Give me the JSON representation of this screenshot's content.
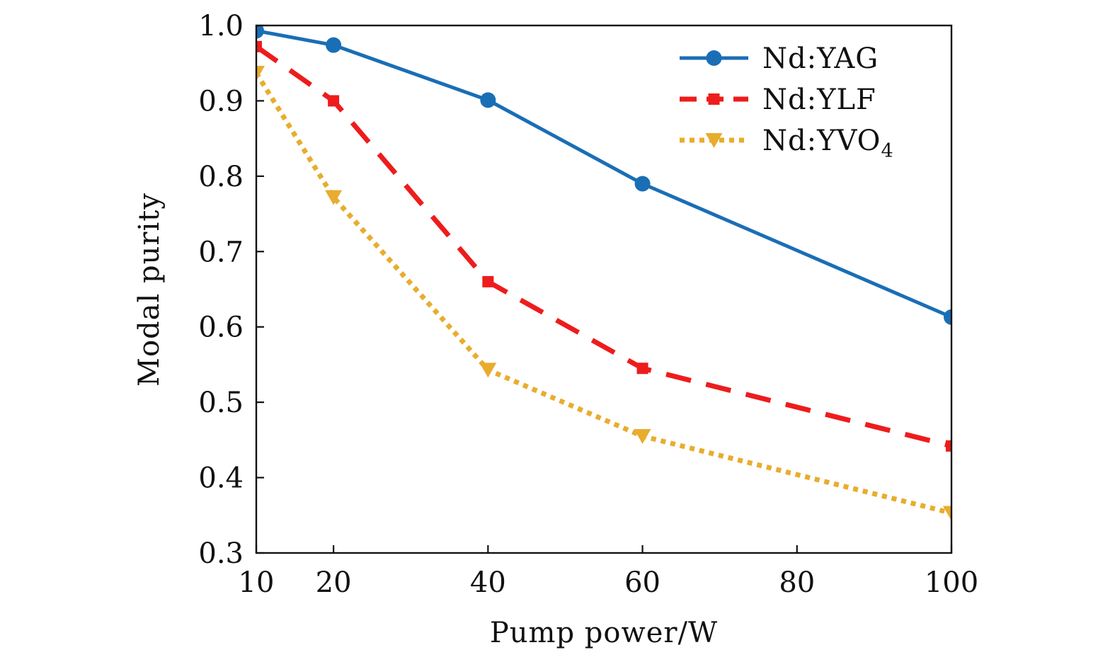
{
  "chart_data": {
    "type": "line",
    "title": "",
    "xlabel": "Pump power/W",
    "ylabel": "Modal purity",
    "xlim": [
      10,
      100
    ],
    "ylim": [
      0.3,
      1.0
    ],
    "x_ticks": [
      10,
      20,
      40,
      60,
      80,
      100
    ],
    "y_ticks": [
      0.3,
      0.4,
      0.5,
      0.6,
      0.7,
      0.8,
      0.9,
      1.0
    ],
    "x_tick_labels": [
      "10",
      "20",
      "40",
      "60",
      "80",
      "100"
    ],
    "y_tick_labels": [
      "0.3",
      "0.4",
      "0.5",
      "0.6",
      "0.7",
      "0.8",
      "0.9",
      "1.0"
    ],
    "grid": false,
    "legend_position": "top-right",
    "x": [
      10,
      20,
      40,
      60,
      100
    ],
    "series": [
      {
        "name": "Nd:YAG",
        "legend_main": "Nd:YAG",
        "legend_sub": "",
        "values": [
          0.993,
          0.974,
          0.901,
          0.79,
          0.613
        ],
        "color": "#1a6eb5",
        "line_style": "solid",
        "marker": "circle"
      },
      {
        "name": "Nd:YLF",
        "legend_main": "Nd:YLF",
        "legend_sub": "",
        "values": [
          0.972,
          0.9,
          0.66,
          0.545,
          0.442
        ],
        "color": "#ee1c1c",
        "line_style": "dashed",
        "marker": "square"
      },
      {
        "name": "Nd:YVO4",
        "legend_main": "Nd:YVO",
        "legend_sub": "4",
        "values": [
          0.937,
          0.772,
          0.543,
          0.455,
          0.353
        ],
        "color": "#e8ad2e",
        "line_style": "dotted",
        "marker": "triangle-down"
      }
    ]
  }
}
